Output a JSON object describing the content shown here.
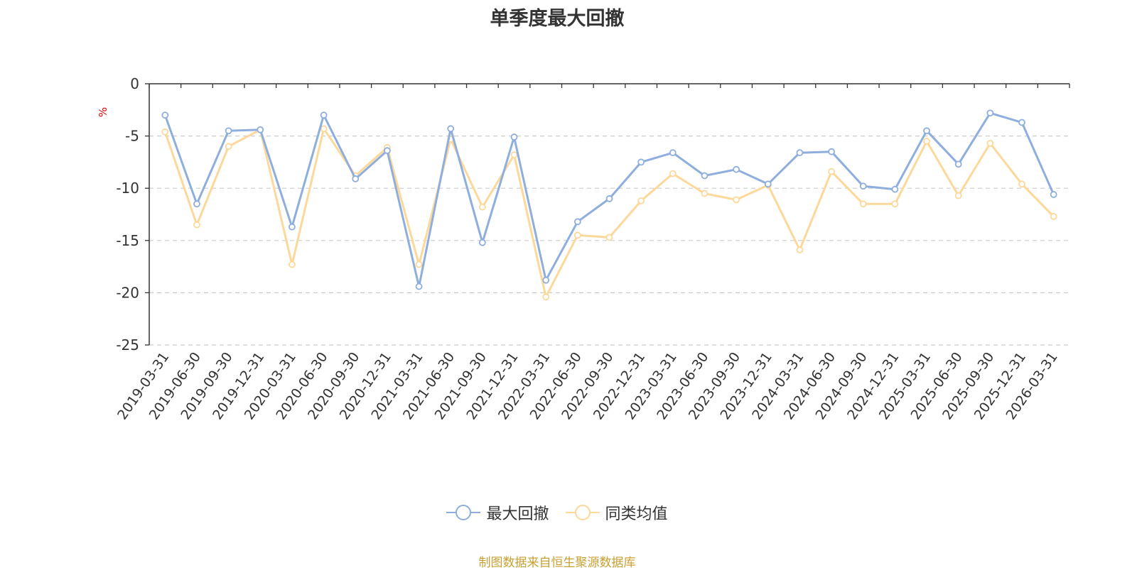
{
  "chart_data": {
    "type": "line",
    "title": "单季度最大回撤",
    "ylabel": "%",
    "ylim": [
      -25,
      0
    ],
    "yticks": [
      0,
      -5,
      -10,
      -15,
      -20,
      -25
    ],
    "grid": true,
    "legend_position": "bottom",
    "categories": [
      "2019-03-31",
      "2019-06-30",
      "2019-09-30",
      "2019-12-31",
      "2020-03-31",
      "2020-06-30",
      "2020-09-30",
      "2020-12-31",
      "2021-03-31",
      "2021-06-30",
      "2021-09-30",
      "2021-12-31",
      "2022-03-31",
      "2022-06-30",
      "2022-09-30",
      "2022-12-31",
      "2023-03-31",
      "2023-06-30",
      "2023-09-30",
      "2023-12-31",
      "2024-03-31",
      "2024-06-30",
      "2024-09-30",
      "2024-12-31",
      "2025-03-31",
      "2025-06-30",
      "2025-09-30",
      "2025-12-31",
      "2026-03-31"
    ],
    "series": [
      {
        "name": "最大回撤",
        "color": "#8eaedd",
        "values": [
          -3.0,
          -11.5,
          -4.5,
          -4.4,
          -13.7,
          -3.0,
          -9.1,
          -6.4,
          -19.4,
          -4.3,
          -15.2,
          -5.1,
          -18.8,
          -13.2,
          -11.0,
          -7.5,
          -6.6,
          -8.8,
          -8.2,
          -9.6,
          -6.6,
          -6.5,
          -9.8,
          -10.1,
          -4.5,
          -7.7,
          -2.8,
          -3.7,
          -10.6
        ]
      },
      {
        "name": "同类均值",
        "color": "#fcd89a",
        "values": [
          -4.6,
          -13.5,
          -6.0,
          -4.4,
          -17.3,
          -4.3,
          -8.8,
          -6.1,
          -17.3,
          -5.3,
          -11.8,
          -6.8,
          -20.4,
          -14.5,
          -14.7,
          -11.2,
          -8.6,
          -10.5,
          -11.1,
          -9.7,
          -15.9,
          -8.4,
          -11.5,
          -11.5,
          -5.5,
          -10.7,
          -5.7,
          -9.6,
          -12.7
        ]
      }
    ]
  },
  "source_note": "制图数据来自恒生聚源数据库"
}
